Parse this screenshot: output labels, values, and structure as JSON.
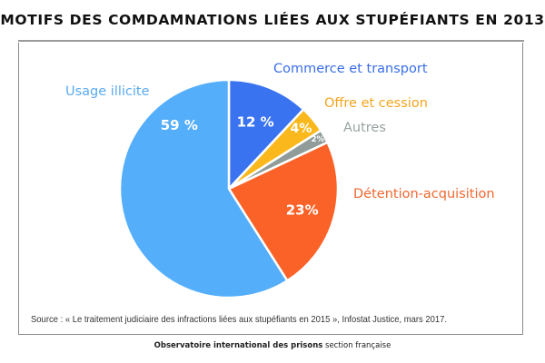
{
  "colors": {
    "usage": "#55aefa",
    "commerce": "#3a73f0",
    "offre": "#fbb81c",
    "autres": "#8f9c99",
    "detention": "#fb6228",
    "label_usage": "#5aaaf0",
    "label_commerce": "#3a6ee8",
    "label_offre": "#f5a51e",
    "label_autres": "#98a3a3",
    "label_detention": "#f0672f"
  },
  "chart_data": {
    "type": "pie",
    "title": "MOTIFS DES COMDAMNATIONS LIÉES AUX STUPÉFIANTS EN 2013",
    "unit": "%",
    "start": "top",
    "direction": "clockwise",
    "slices": [
      {
        "key": "commerce",
        "label": "Commerce et transport",
        "value": 12,
        "value_label": "12 %"
      },
      {
        "key": "offre",
        "label": "Offre et cession",
        "value": 4,
        "value_label": "4%"
      },
      {
        "key": "autres",
        "label": "Autres",
        "value": 2,
        "value_label": "2%"
      },
      {
        "key": "detention",
        "label": "Détention-acquisition",
        "value": 23,
        "value_label": "23%"
      },
      {
        "key": "usage",
        "label": "Usage illicite",
        "value": 59,
        "value_label": "59 %"
      }
    ]
  },
  "source": "Source : « Le traitement judiciaire des infractions liées aux stupéfiants en 2015 », Infostat Justice, mars 2017.",
  "footer": {
    "org_bold": "Observatoire international des prisons",
    "org_rest": " section française"
  }
}
